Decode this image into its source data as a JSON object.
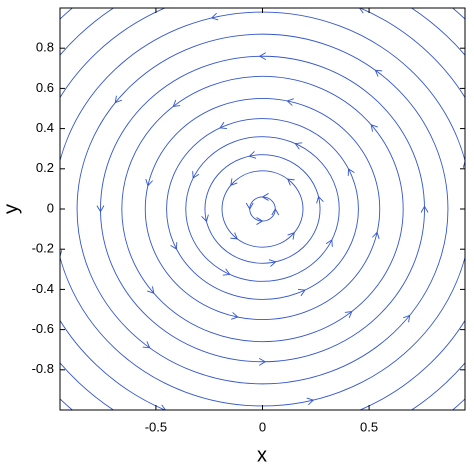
{
  "chart_data": {
    "type": "streamplot",
    "xlabel": "x",
    "ylabel": "y",
    "xlim": [
      -0.95,
      0.95
    ],
    "ylim": [
      -1,
      1
    ],
    "xticks": [
      -0.5,
      0,
      0.5
    ],
    "yticks": [
      -0.8,
      -0.6,
      -0.4,
      -0.2,
      0,
      0.2,
      0.4,
      0.6,
      0.8
    ],
    "color": "#3355cc",
    "direction": "counterclockwise",
    "radii": [
      0.06,
      0.19,
      0.27,
      0.36,
      0.45,
      0.55,
      0.66,
      0.76,
      0.87,
      0.98,
      1.1,
      1.22,
      1.34
    ]
  }
}
